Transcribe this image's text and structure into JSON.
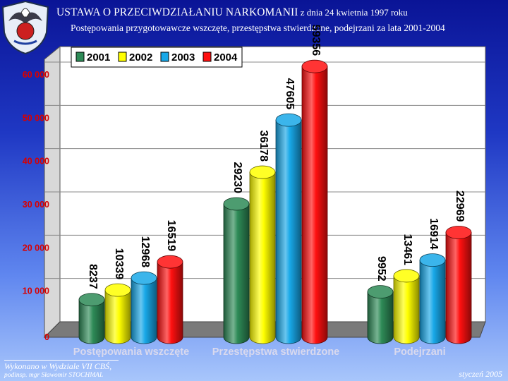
{
  "header": {
    "title": "USTAWA O PRZECIWDZIAŁANIU NARKOMANII",
    "title_date": " z dnia 24 kwietnia 1997 roku",
    "subtitle": "Postępowania przygotowawcze wszczęte, przestępstwa stwierdzone, podejrzani za lata 2001-2004"
  },
  "footer": {
    "department": "Wykonano w Wydziale VII CBŚ,",
    "author": "podinsp. mgr Sławomir STOCHMAL",
    "date": "styczeń 2005"
  },
  "logo": {
    "icon": "eagle-emblem-icon"
  },
  "chart_data": {
    "type": "bar",
    "style": "3d-cylinder",
    "categories": [
      "Postępowania wszczęte",
      "Przestępstwa stwierdzone",
      "Podejrzani"
    ],
    "series": [
      {
        "name": "2001",
        "color": "#2e8b57",
        "values": [
          8237,
          29230,
          9952
        ]
      },
      {
        "name": "2002",
        "color": "#ffff00",
        "values": [
          10339,
          36178,
          13461
        ]
      },
      {
        "name": "2003",
        "color": "#18a8e8",
        "values": [
          12968,
          47605,
          16914
        ]
      },
      {
        "name": "2004",
        "color": "#ff1010",
        "values": [
          16519,
          59356,
          22969
        ]
      }
    ],
    "ylim": [
      0,
      60000
    ],
    "yticks": [
      0,
      10000,
      20000,
      30000,
      40000,
      50000,
      60000
    ],
    "ytick_labels": [
      "0",
      "10 000",
      "20 000",
      "30 000",
      "40 000",
      "50 000",
      "60 000"
    ],
    "data_labels": [
      "8237",
      "10339",
      "12968",
      "16519",
      "29230",
      "36178",
      "47605",
      "59356",
      "9952",
      "13461",
      "16914",
      "22969"
    ],
    "legend": "top-left",
    "grid": true
  }
}
